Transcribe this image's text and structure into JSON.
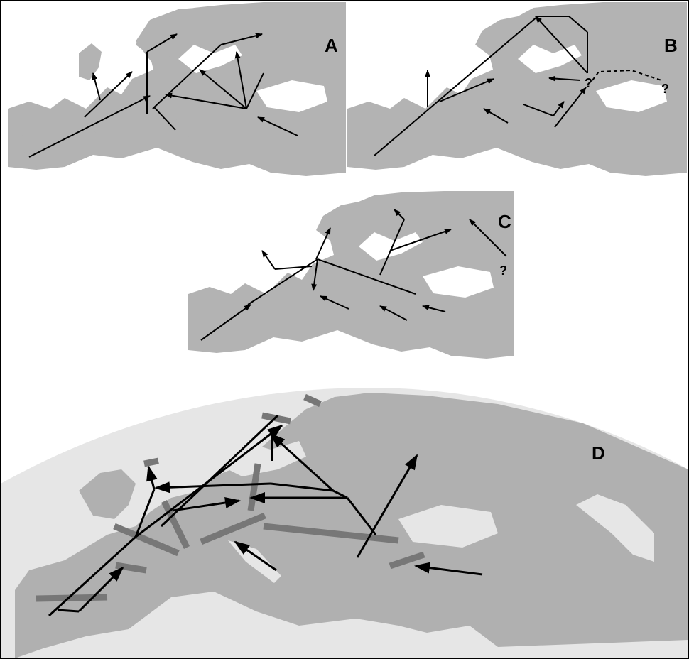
{
  "panels": [
    {
      "id": "A",
      "label": "A"
    },
    {
      "id": "B",
      "label": "B",
      "question_marks": [
        "?",
        "?"
      ]
    },
    {
      "id": "C",
      "label": "C",
      "question_marks": [
        "?"
      ]
    },
    {
      "id": "D",
      "label": "D"
    }
  ],
  "colors": {
    "land": "#b3b3b3",
    "sea": "#ffffff",
    "sea_d": "#e6e6e6",
    "land_d": "#b0b0b0",
    "route": "#000000",
    "barrier": "#777777"
  }
}
